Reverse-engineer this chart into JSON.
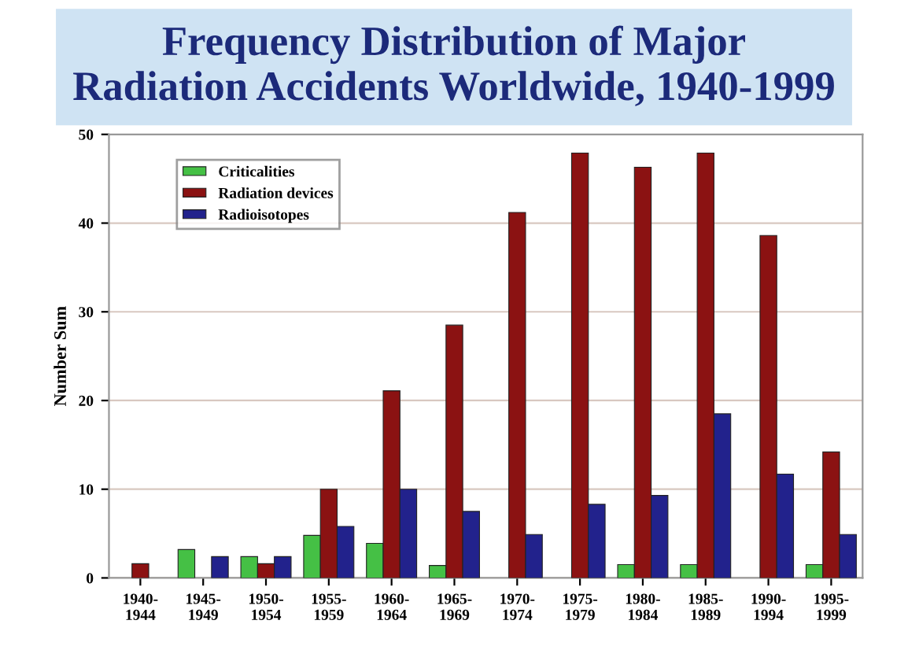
{
  "chart_data": {
    "type": "bar",
    "title": "Frequency Distribution of Major\nRadiation Accidents Worldwide, 1940-1999",
    "ylabel": "Number Sum",
    "categories": [
      "1940-\n1944",
      "1945-\n1949",
      "1950-\n1954",
      "1955-\n1959",
      "1960-\n1964",
      "1965-\n1969",
      "1970-\n1974",
      "1975-\n1979",
      "1980-\n1984",
      "1985-\n1989",
      "1990-\n1994",
      "1995-\n1999"
    ],
    "series": [
      {
        "name": "Criticalities",
        "color": "#45c045",
        "values": [
          null,
          3.2,
          2.4,
          4.8,
          3.9,
          1.4,
          null,
          null,
          1.5,
          1.5,
          null,
          1.5
        ]
      },
      {
        "name": "Radiation devices",
        "color": "#8b1212",
        "values": [
          1.6,
          null,
          1.6,
          10,
          21.1,
          28.5,
          41.2,
          47.9,
          46.3,
          47.9,
          38.6,
          14.2
        ]
      },
      {
        "name": "Radioisotopes",
        "color": "#22228c",
        "values": [
          null,
          2.4,
          2.4,
          5.8,
          10,
          7.5,
          4.9,
          8.3,
          9.3,
          18.5,
          11.7,
          4.9
        ]
      }
    ],
    "ylim": [
      0,
      50
    ],
    "yticks": [
      0,
      10,
      20,
      30,
      40,
      50
    ],
    "grid": "y",
    "legend": "top left"
  }
}
